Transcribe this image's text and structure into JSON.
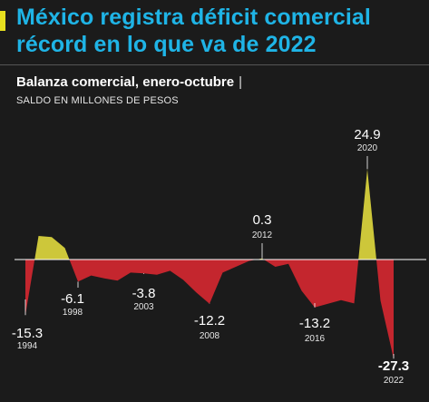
{
  "header": {
    "title": "México registra déficit comercial récord en lo que va de 2022",
    "subtitle": "Balanza comercial, enero-octubre",
    "subtitle_sep": "|",
    "units": "SALDO EN MILLONES DE PESOS"
  },
  "colors": {
    "positive": "#cdc73a",
    "negative": "#c4262e",
    "title": "#1fb4e6",
    "accent": "#e7e01f",
    "background": "#1b1b1b"
  },
  "chart_data": {
    "type": "area",
    "title": "México registra déficit comercial récord en lo que va de 2022",
    "subtitle": "Balanza comercial, enero-octubre",
    "ylabel": "SALDO EN MILLONES DE PESOS",
    "ylim": [
      -28,
      26
    ],
    "grid": false,
    "x": [
      1994,
      1995,
      1996,
      1997,
      1998,
      1999,
      2000,
      2001,
      2002,
      2003,
      2004,
      2005,
      2006,
      2007,
      2008,
      2009,
      2010,
      2011,
      2012,
      2013,
      2014,
      2015,
      2016,
      2017,
      2018,
      2019,
      2020,
      2021,
      2022
    ],
    "values": [
      -15.3,
      6.5,
      6.2,
      3.2,
      -6.1,
      -4.4,
      -5.2,
      -5.8,
      -3.6,
      -3.8,
      -4.2,
      -3.1,
      -5.6,
      -9.1,
      -12.2,
      -3.6,
      -2.0,
      -0.4,
      0.3,
      -2.0,
      -1.2,
      -8.6,
      -13.2,
      -12.2,
      -11.2,
      -12.1,
      24.9,
      -11.3,
      -27.3
    ],
    "annotations": [
      {
        "year": 1994,
        "label": "-15.3",
        "year_label": "1994"
      },
      {
        "year": 1998,
        "label": "-6.1",
        "year_label": "1998"
      },
      {
        "year": 2003,
        "label": "-3.8",
        "year_label": "2003"
      },
      {
        "year": 2008,
        "label": "-12.2",
        "year_label": "2008"
      },
      {
        "year": 2012,
        "label": "0.3",
        "year_label": "2012"
      },
      {
        "year": 2016,
        "label": "-13.2",
        "year_label": "2016"
      },
      {
        "year": 2020,
        "label": "24.9",
        "year_label": "2020"
      },
      {
        "year": 2022,
        "label": "-27.3",
        "year_label": "2022"
      }
    ]
  }
}
